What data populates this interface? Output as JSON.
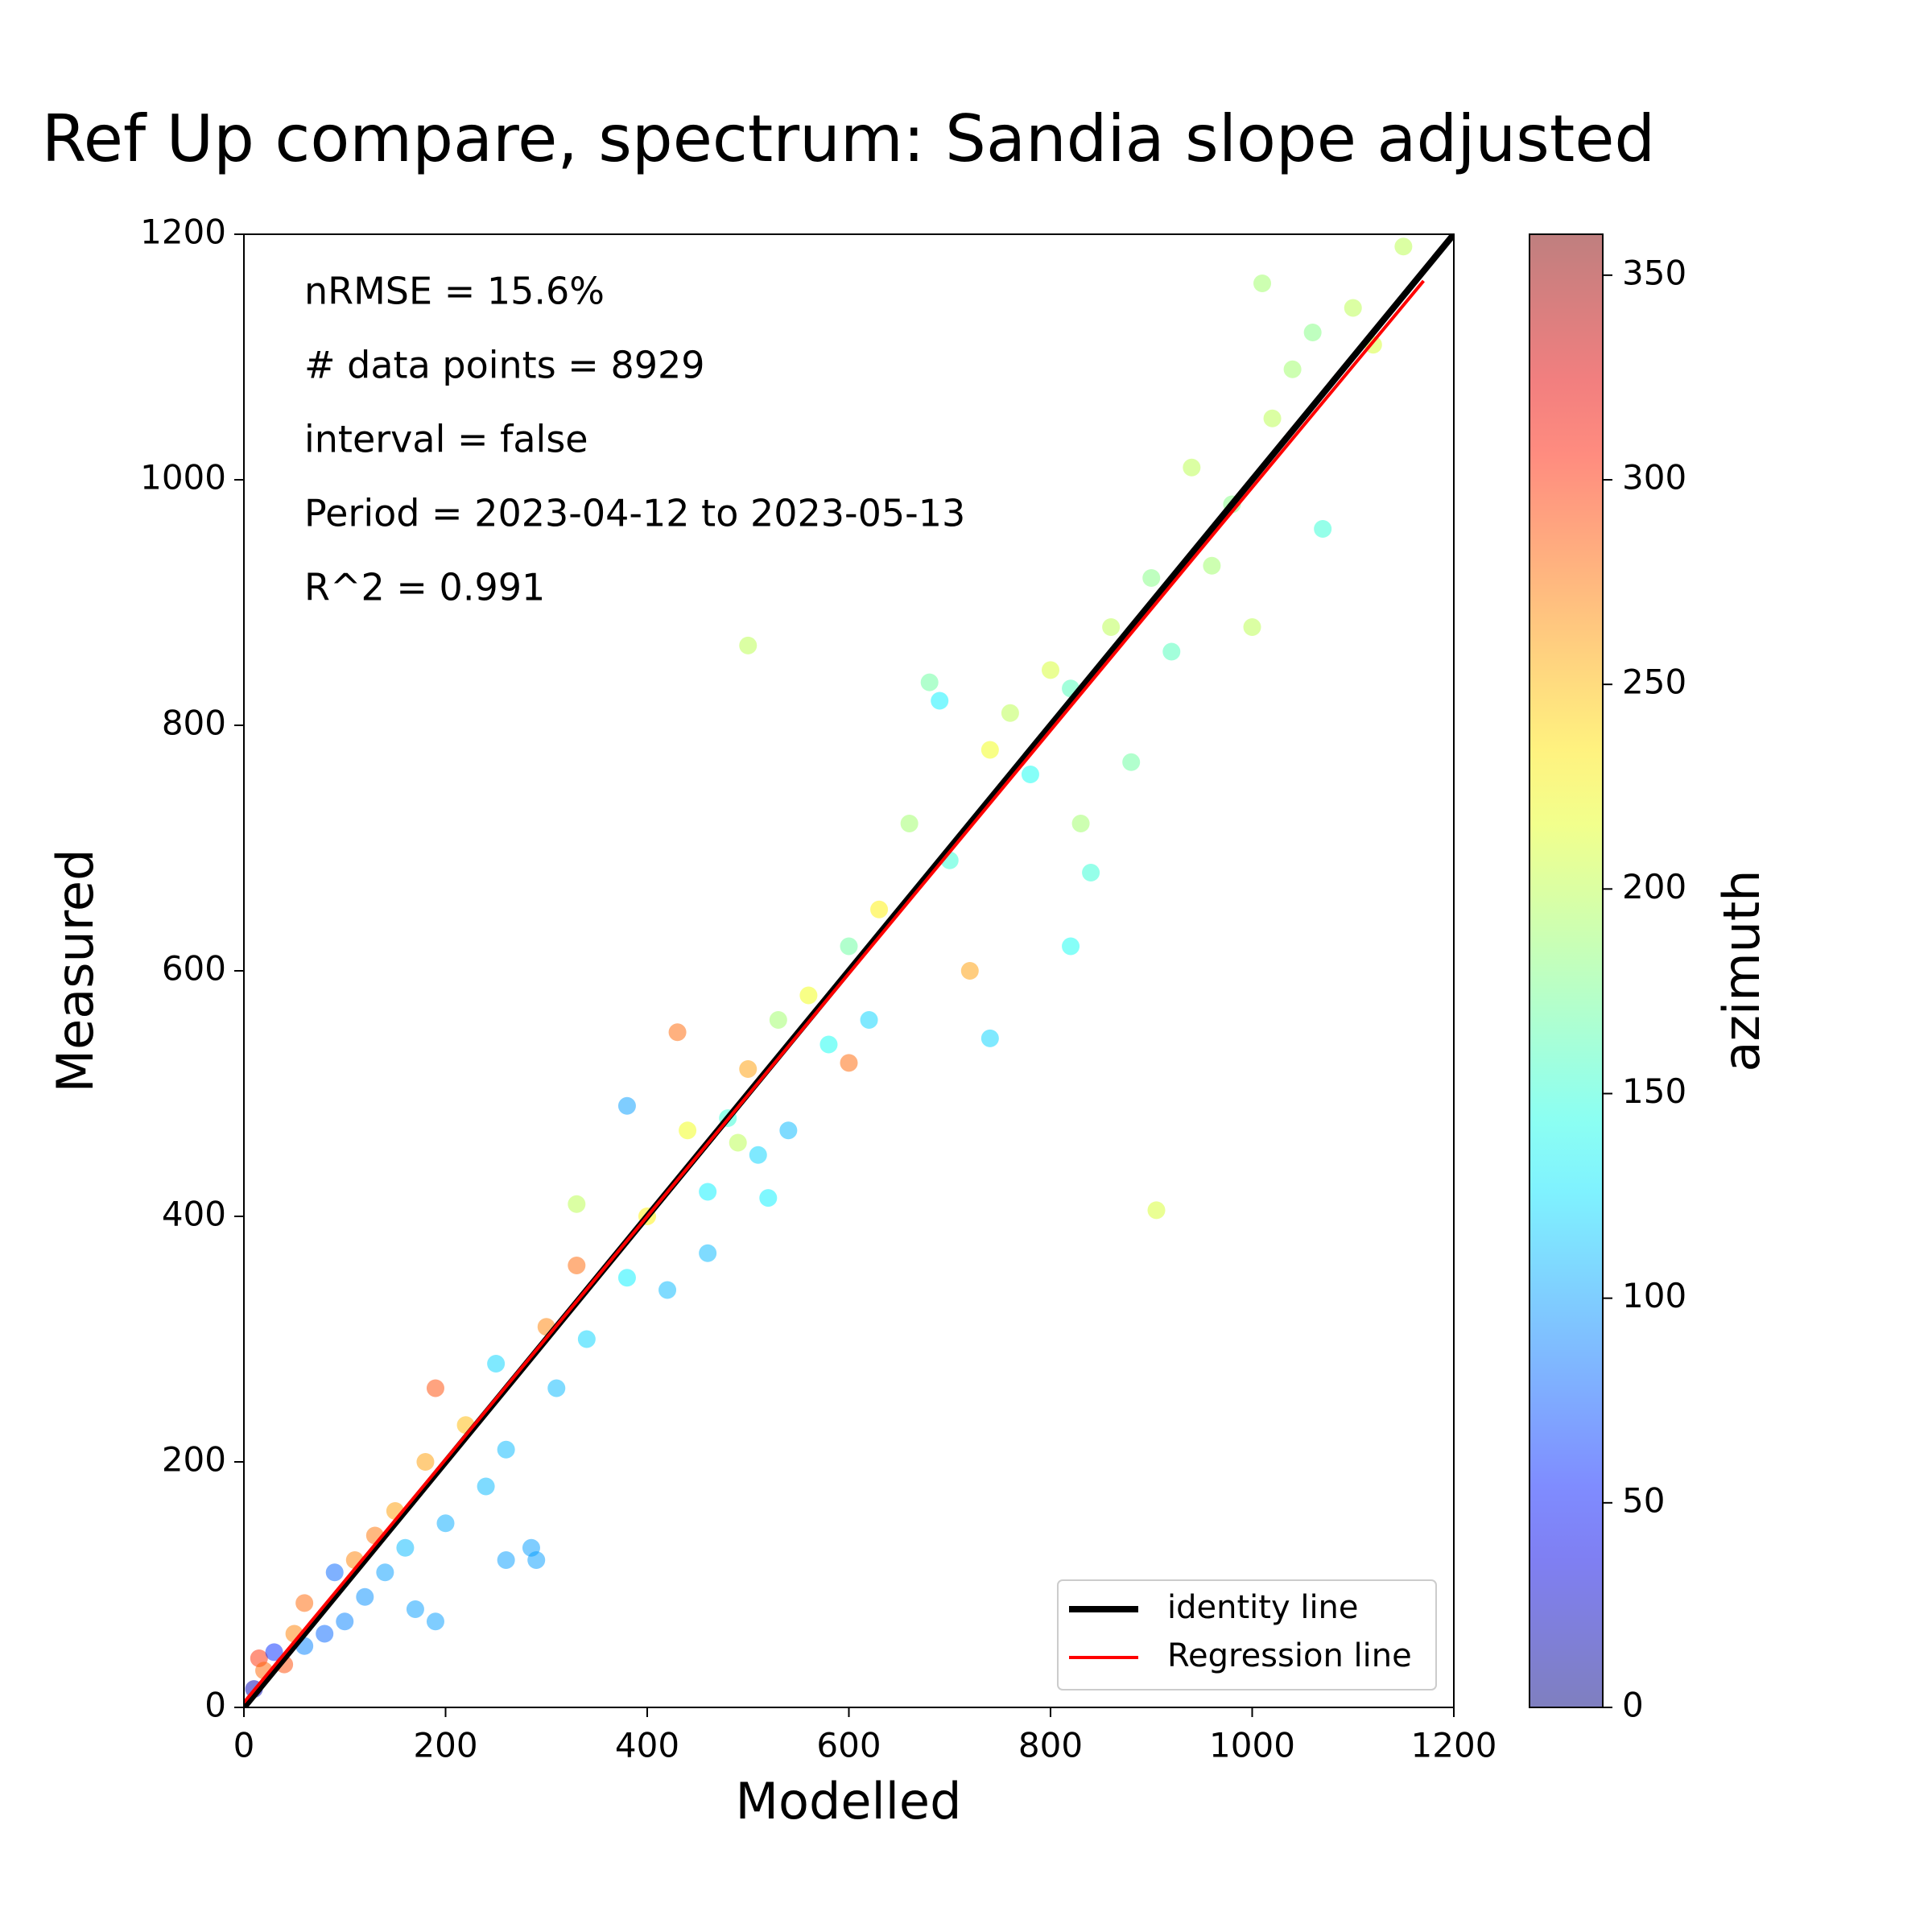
{
  "chart_data": {
    "type": "scatter",
    "title": "Ref Up compare, spectrum: Sandia slope adjusted",
    "xlabel": "Modelled",
    "ylabel": "Measured",
    "xlim": [
      0,
      1200
    ],
    "ylim": [
      0,
      1200
    ],
    "xticks": [
      0,
      200,
      400,
      600,
      800,
      1000,
      1200
    ],
    "yticks": [
      0,
      200,
      400,
      600,
      800,
      1000,
      1200
    ],
    "annotations": [
      "nRMSE = 15.6%",
      "# data points = 8929",
      "interval = false",
      "Period = 2023-04-12 to 2023-05-13",
      "R^2 = 0.991"
    ],
    "colorbar": {
      "label": "azimuth",
      "colormap": "jet",
      "alpha": 0.5,
      "lim": [
        0,
        360
      ],
      "ticks": [
        0,
        50,
        100,
        150,
        200,
        250,
        300,
        350
      ]
    },
    "scatter": {
      "x": [
        10,
        15,
        20,
        30,
        40,
        50,
        60,
        60,
        80,
        90,
        100,
        110,
        120,
        130,
        140,
        150,
        160,
        170,
        180,
        190,
        190,
        200,
        220,
        240,
        250,
        260,
        260,
        285,
        290,
        300,
        310,
        330,
        340,
        330,
        380,
        380,
        400,
        420,
        430,
        440,
        460,
        460,
        480,
        490,
        500,
        500,
        510,
        520,
        530,
        540,
        560,
        580,
        600,
        600,
        620,
        630,
        660,
        680,
        690,
        700,
        720,
        740,
        740,
        760,
        780,
        800,
        820,
        820,
        830,
        840,
        860,
        880,
        900,
        905,
        920,
        940,
        960,
        980,
        1000,
        1010,
        1020,
        1040,
        1060,
        1070,
        1100,
        1120,
        1150
      ],
      "y": [
        15,
        40,
        30,
        45,
        35,
        60,
        50,
        85,
        60,
        110,
        70,
        120,
        90,
        140,
        110,
        160,
        130,
        80,
        200,
        70,
        260,
        150,
        230,
        180,
        280,
        210,
        120,
        130,
        120,
        310,
        260,
        360,
        300,
        410,
        490,
        350,
        400,
        340,
        550,
        470,
        420,
        370,
        480,
        460,
        520,
        865,
        450,
        415,
        560,
        470,
        580,
        540,
        620,
        525,
        560,
        650,
        720,
        835,
        820,
        690,
        600,
        780,
        545,
        810,
        760,
        845,
        830,
        620,
        720,
        680,
        880,
        770,
        920,
        405,
        860,
        1010,
        930,
        980,
        880,
        1160,
        1050,
        1090,
        1120,
        960,
        1140,
        1110,
        1190
      ],
      "c": [
        20,
        300,
        280,
        60,
        290,
        270,
        90,
        280,
        80,
        80,
        90,
        270,
        95,
        275,
        100,
        260,
        110,
        100,
        260,
        100,
        290,
        105,
        250,
        110,
        120,
        110,
        100,
        100,
        100,
        270,
        110,
        280,
        120,
        200,
        100,
        130,
        230,
        110,
        280,
        220,
        130,
        110,
        150,
        200,
        260,
        200,
        120,
        130,
        190,
        110,
        220,
        140,
        170,
        280,
        120,
        230,
        190,
        170,
        130,
        150,
        260,
        220,
        120,
        200,
        140,
        210,
        160,
        140,
        190,
        150,
        200,
        170,
        180,
        210,
        160,
        200,
        190,
        180,
        200,
        190,
        200,
        190,
        180,
        150,
        200,
        210,
        200
      ]
    },
    "lines": [
      {
        "name": "identity line",
        "color": "#000000",
        "x": [
          0,
          1200
        ],
        "y": [
          0,
          1200
        ]
      },
      {
        "name": "Regression line",
        "color": "#ff0000",
        "x": [
          0,
          1170
        ],
        "y": [
          4,
          1162
        ]
      }
    ],
    "legend": "lower right"
  }
}
